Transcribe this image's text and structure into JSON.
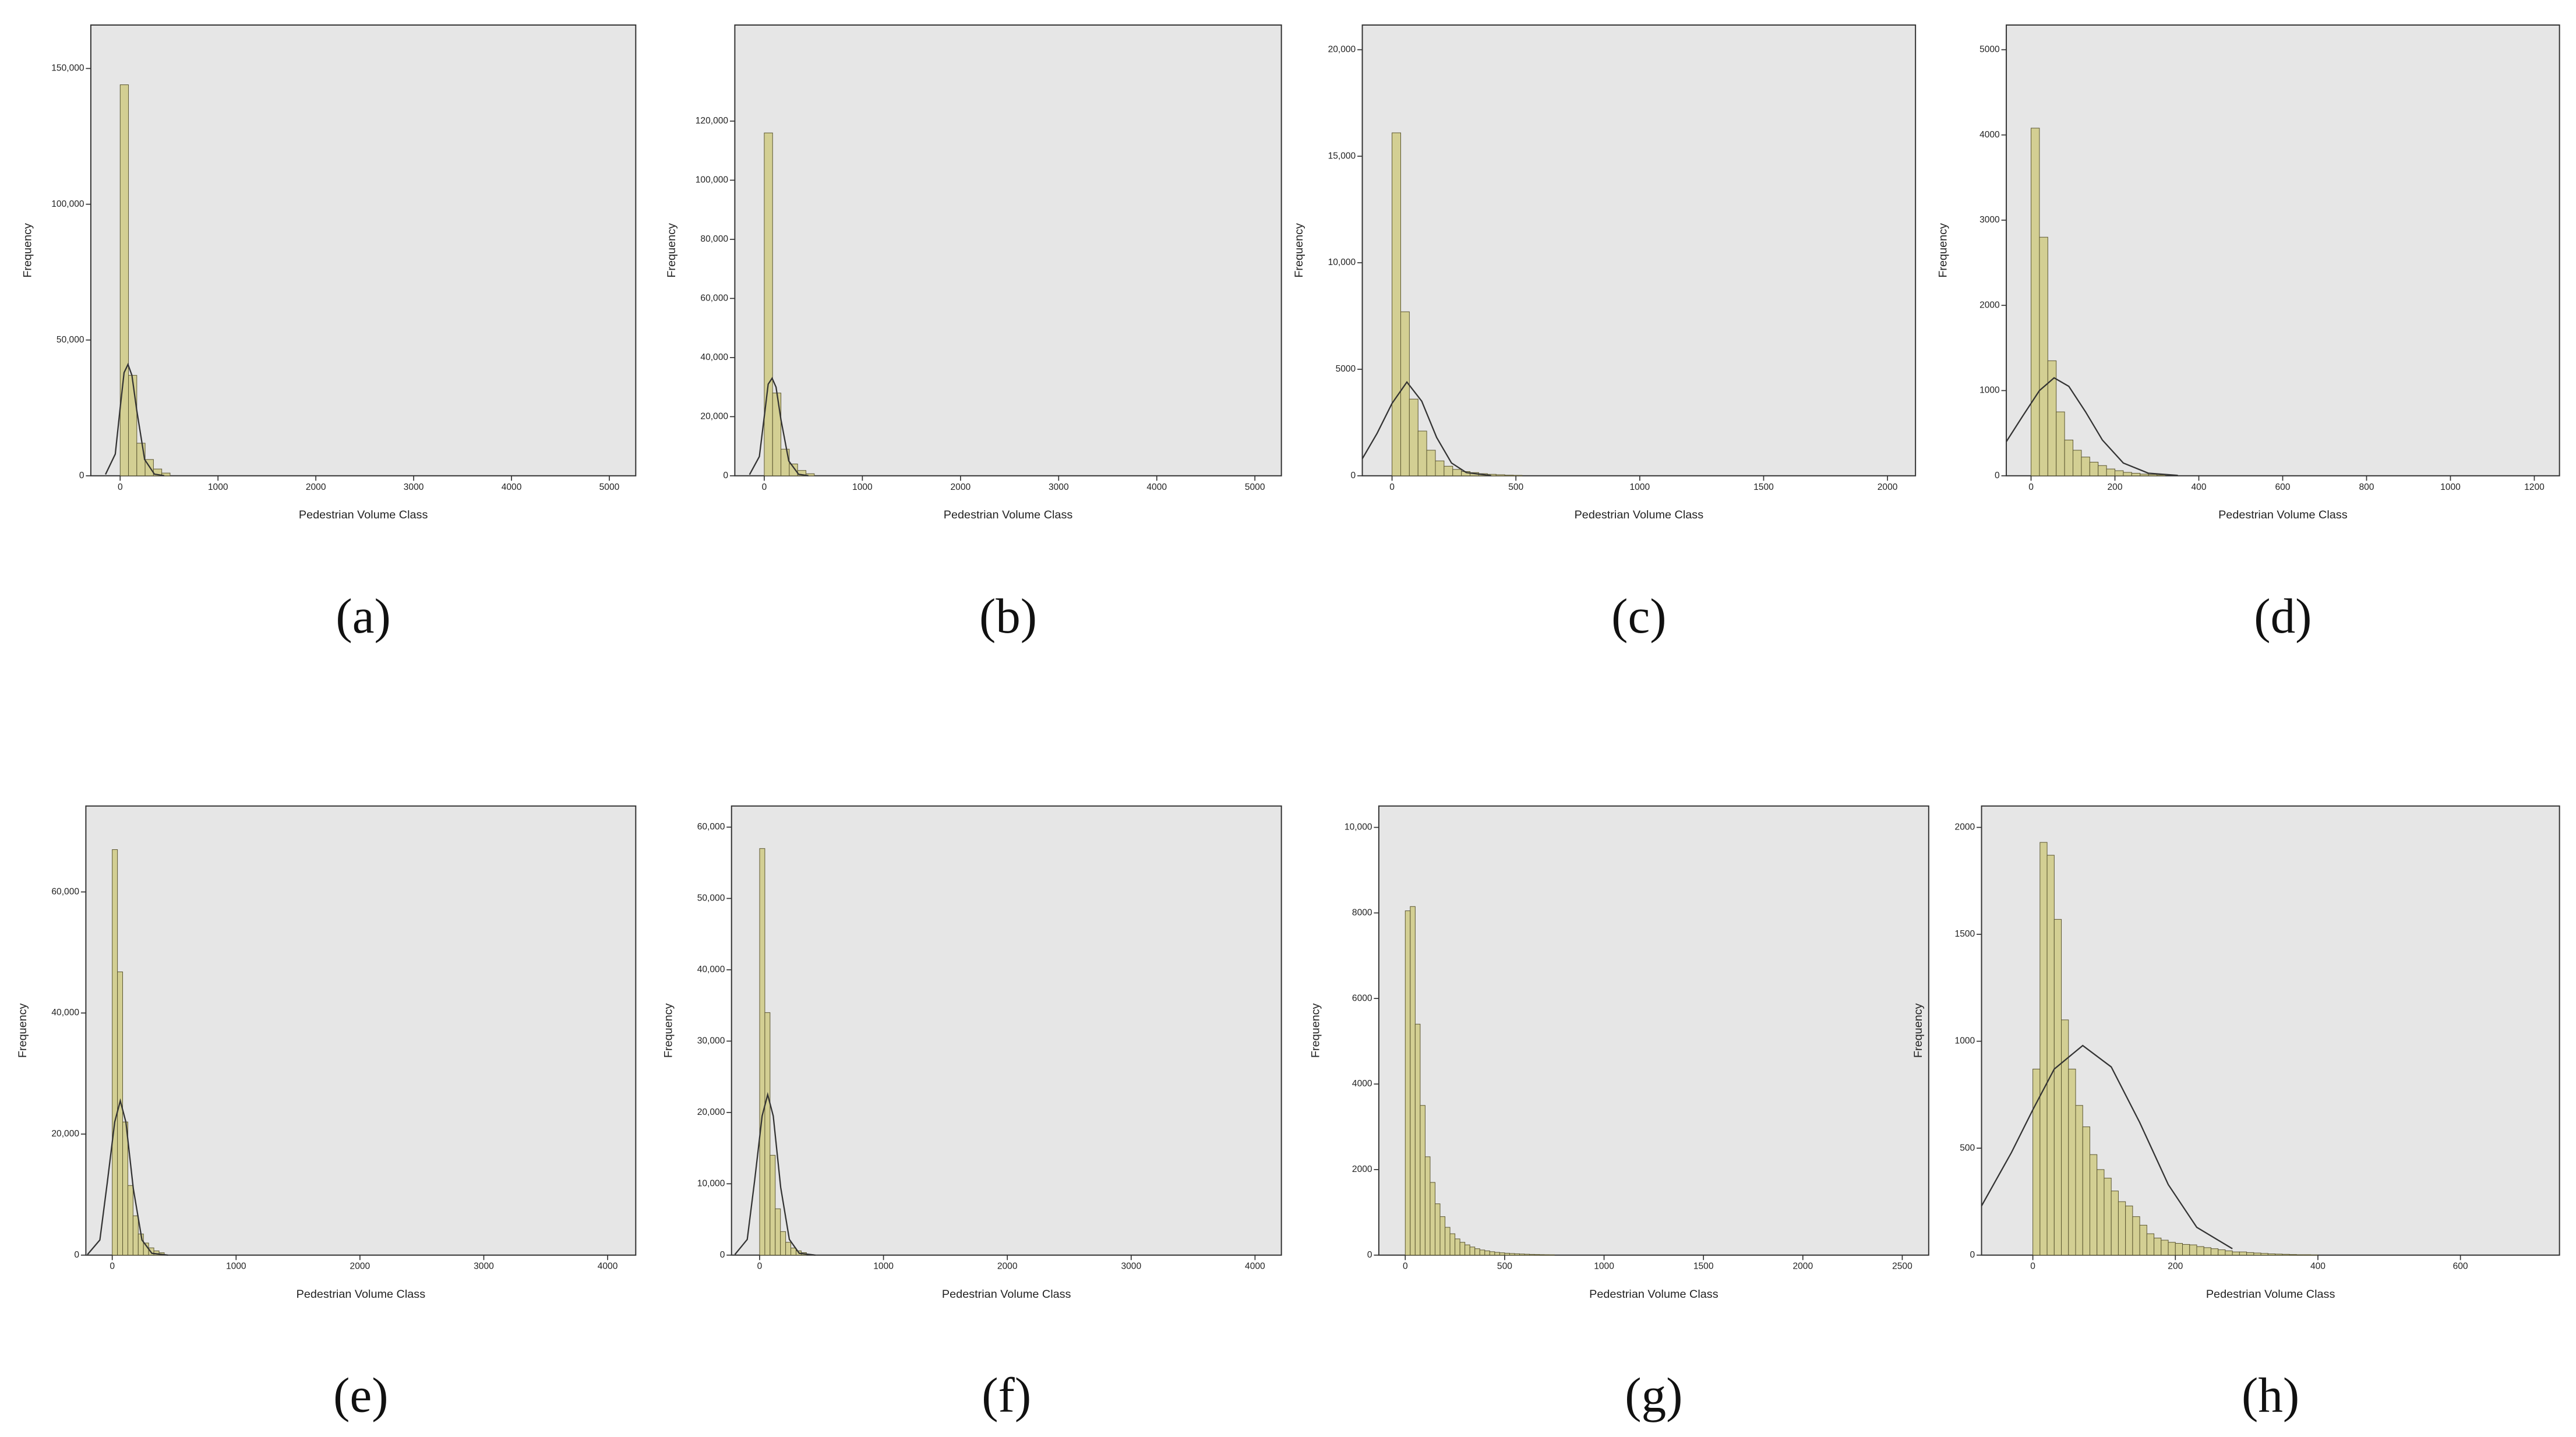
{
  "chart_data": [
    {
      "type": "histogram",
      "caption": "(a)",
      "x_label": "Pedestrian Volume Class",
      "y_label": "Frequency",
      "xlim": [
        -300,
        5270
      ],
      "xticks": [
        0,
        1000,
        2000,
        3000,
        4000,
        5000
      ],
      "ylim": [
        0,
        166000
      ],
      "yticks": [
        0,
        {
          "value": 50000,
          "label": "50,000"
        },
        {
          "value": 100000,
          "label": "100,000"
        },
        {
          "value": 150000,
          "label": "150,000"
        }
      ],
      "bins": [
        0,
        85,
        170,
        255,
        340,
        425,
        510
      ],
      "values": [
        144000,
        37000,
        12000,
        6000,
        2500,
        1000
      ],
      "curve": {
        "x": [
          -150,
          -50,
          0,
          40,
          80,
          120,
          170,
          250,
          350,
          450
        ],
        "values": [
          500,
          8000,
          25000,
          38000,
          41000,
          37000,
          24000,
          6000,
          600,
          50
        ]
      },
      "color": "#d3cf93"
    },
    {
      "type": "histogram",
      "caption": "(b)",
      "x_label": "Pedestrian Volume Class",
      "y_label": "Frequency",
      "xlim": [
        -300,
        5270
      ],
      "xticks": [
        0,
        1000,
        2000,
        3000,
        4000,
        5000
      ],
      "ylim": [
        0,
        152500
      ],
      "yticks": [
        0,
        {
          "value": 20000,
          "label": "20,000"
        },
        {
          "value": 40000,
          "label": "40,000"
        },
        {
          "value": 60000,
          "label": "60,000"
        },
        {
          "value": 80000,
          "label": "80,000"
        },
        {
          "value": 100000,
          "label": "100,000"
        },
        {
          "value": 120000,
          "label": "120,000"
        }
      ],
      "bins": [
        0,
        85,
        170,
        255,
        340,
        425,
        510
      ],
      "values": [
        116000,
        28000,
        9000,
        4000,
        1800,
        700
      ],
      "curve": {
        "x": [
          -150,
          -50,
          0,
          40,
          80,
          120,
          170,
          250,
          350,
          450
        ],
        "values": [
          400,
          6500,
          20000,
          31000,
          33000,
          30000,
          19000,
          5000,
          500,
          40
        ]
      },
      "color": "#d3cf93"
    },
    {
      "type": "histogram",
      "caption": "(c)",
      "x_label": "Pedestrian Volume Class",
      "y_label": "Frequency",
      "xlim": [
        -120,
        2113
      ],
      "xticks": [
        0,
        500,
        1000,
        1500,
        2000
      ],
      "ylim": [
        0,
        21160
      ],
      "yticks": [
        0,
        5000,
        {
          "value": 10000,
          "label": "10,000"
        },
        {
          "value": 15000,
          "label": "15,000"
        },
        {
          "value": 20000,
          "label": "20,000"
        }
      ],
      "bins": [
        0,
        35,
        70,
        105,
        140,
        175,
        210,
        245,
        280,
        315,
        350,
        385,
        420,
        455,
        490,
        525
      ],
      "values": [
        16100,
        7700,
        3600,
        2100,
        1200,
        700,
        450,
        300,
        200,
        150,
        100,
        70,
        50,
        30,
        20
      ],
      "curve": {
        "x": [
          -120,
          -60,
          0,
          60,
          120,
          180,
          240,
          300,
          400
        ],
        "values": [
          800,
          2000,
          3400,
          4400,
          3500,
          1800,
          600,
          150,
          10
        ]
      },
      "color": "#d3cf93"
    },
    {
      "type": "histogram",
      "caption": "(d)",
      "x_label": "Pedestrian Volume Class",
      "y_label": "Frequency",
      "xlim": [
        -59,
        1260
      ],
      "xticks": [
        0,
        200,
        400,
        600,
        800,
        1000,
        1200
      ],
      "ylim": [
        0,
        5290
      ],
      "yticks": [
        0,
        1000,
        2000,
        3000,
        4000,
        5000
      ],
      "bins": [
        0,
        20,
        40,
        60,
        80,
        100,
        120,
        140,
        160,
        180,
        200,
        220,
        240,
        260,
        280,
        300,
        320
      ],
      "values": [
        4080,
        2800,
        1350,
        750,
        420,
        300,
        220,
        160,
        120,
        80,
        60,
        40,
        30,
        20,
        15,
        10
      ],
      "curve": {
        "x": [
          -59,
          -20,
          20,
          55,
          90,
          130,
          170,
          220,
          280,
          350
        ],
        "values": [
          400,
          700,
          1000,
          1150,
          1050,
          750,
          420,
          150,
          30,
          5
        ]
      },
      "color": "#d3cf93"
    },
    {
      "type": "histogram",
      "caption": "(e)",
      "x_label": "Pedestrian Volume Class",
      "y_label": "Frequency",
      "xlim": [
        -213,
        4227
      ],
      "xticks": [
        0,
        1000,
        2000,
        3000,
        4000
      ],
      "ylim": [
        0,
        74200
      ],
      "yticks": [
        0,
        {
          "value": 20000,
          "label": "20,000"
        },
        {
          "value": 40000,
          "label": "40,000"
        },
        {
          "value": 60000,
          "label": "60,000"
        }
      ],
      "bins": [
        0,
        42,
        84,
        126,
        168,
        210,
        252,
        294,
        336,
        378,
        420
      ],
      "values": [
        67000,
        46800,
        22000,
        11500,
        6500,
        3500,
        2000,
        1200,
        700,
        400
      ],
      "curve": {
        "x": [
          -200,
          -100,
          -40,
          20,
          65,
          110,
          170,
          240,
          320,
          450
        ],
        "values": [
          100,
          2500,
          12000,
          22000,
          25500,
          22000,
          11000,
          2500,
          300,
          0
        ]
      },
      "color": "#d3cf93"
    },
    {
      "type": "histogram",
      "caption": "(f)",
      "x_label": "Pedestrian Volume Class",
      "y_label": "Frequency",
      "xlim": [
        -227,
        4213
      ],
      "xticks": [
        0,
        1000,
        2000,
        3000,
        4000
      ],
      "ylim": [
        0,
        62960
      ],
      "yticks": [
        0,
        {
          "value": 10000,
          "label": "10,000"
        },
        {
          "value": 20000,
          "label": "20,000"
        },
        {
          "value": 30000,
          "label": "30,000"
        },
        {
          "value": 40000,
          "label": "40,000"
        },
        {
          "value": 50000,
          "label": "50,000"
        },
        {
          "value": 60000,
          "label": "60,000"
        }
      ],
      "bins": [
        0,
        42,
        84,
        126,
        168,
        210,
        252,
        294,
        336,
        378
      ],
      "values": [
        57000,
        34000,
        14000,
        6500,
        3300,
        1800,
        1000,
        600,
        350
      ],
      "curve": {
        "x": [
          -200,
          -100,
          -40,
          20,
          65,
          110,
          170,
          240,
          320,
          450
        ],
        "values": [
          80,
          2200,
          10500,
          19500,
          22500,
          19500,
          9500,
          2200,
          250,
          0
        ]
      },
      "color": "#d3cf93"
    },
    {
      "type": "histogram",
      "caption": "(g)",
      "x_label": "Pedestrian Volume Class",
      "y_label": "Frequency",
      "xlim": [
        -133,
        2633
      ],
      "xticks": [
        0,
        500,
        1000,
        1500,
        2000,
        2500
      ],
      "ylim": [
        0,
        10500
      ],
      "yticks": [
        0,
        2000,
        4000,
        6000,
        8000,
        {
          "value": 10000,
          "label": "10,000"
        }
      ],
      "bins": [
        0,
        25,
        50,
        75,
        100,
        125,
        150,
        175,
        200,
        225,
        250,
        275,
        300,
        325,
        350,
        375,
        400,
        425,
        450,
        475,
        500,
        525,
        550,
        575,
        600,
        625,
        650,
        675,
        700,
        725,
        750
      ],
      "values": [
        8050,
        8150,
        5400,
        3500,
        2300,
        1700,
        1200,
        900,
        650,
        500,
        380,
        300,
        240,
        190,
        150,
        120,
        100,
        80,
        65,
        55,
        45,
        38,
        32,
        27,
        22,
        18,
        15,
        12,
        10,
        8
      ],
      "color": "#d3cf93"
    },
    {
      "type": "histogram",
      "caption": "(h)",
      "x_label": "Pedestrian Volume Class",
      "y_label": "Frequency",
      "xlim": [
        -72,
        739
      ],
      "xticks": [
        0,
        200,
        400,
        600
      ],
      "ylim": [
        0,
        2100
      ],
      "yticks": [
        0,
        500,
        1000,
        1500,
        2000
      ],
      "bins": [
        0,
        10,
        20,
        30,
        40,
        50,
        60,
        70,
        80,
        90,
        100,
        110,
        120,
        130,
        140,
        150,
        160,
        170,
        180,
        190,
        200,
        210,
        220,
        230,
        240,
        250,
        260,
        270,
        280,
        290,
        300,
        310,
        320,
        330,
        340,
        350,
        360,
        370,
        380,
        390,
        400
      ],
      "values": [
        870,
        1930,
        1870,
        1570,
        1100,
        870,
        700,
        600,
        470,
        400,
        360,
        300,
        250,
        230,
        180,
        140,
        100,
        80,
        70,
        60,
        55,
        50,
        48,
        40,
        35,
        30,
        25,
        20,
        15,
        15,
        12,
        10,
        8,
        6,
        5,
        4,
        3,
        2,
        2,
        1
      ],
      "curve": {
        "x": [
          -72,
          -30,
          0,
          30,
          70,
          110,
          150,
          190,
          230,
          280
        ],
        "values": [
          230,
          480,
          680,
          870,
          980,
          880,
          620,
          330,
          130,
          30
        ]
      },
      "color": "#d3cf93"
    }
  ]
}
